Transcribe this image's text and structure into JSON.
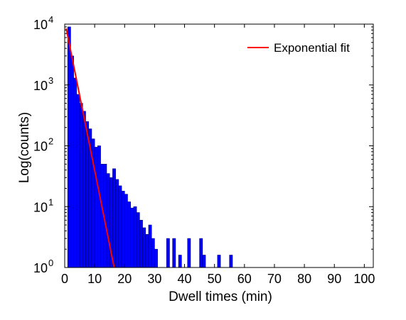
{
  "chart_data": {
    "type": "bar",
    "xlabel": "Dwell times (min)",
    "ylabel": "Log(counts)",
    "xlim": [
      0,
      103
    ],
    "xticks": [
      0,
      10,
      20,
      30,
      40,
      50,
      60,
      70,
      80,
      90,
      100
    ],
    "xtick_labels": [
      "0",
      "10",
      "20",
      "30",
      "40",
      "50",
      "60",
      "70",
      "80",
      "90",
      "100"
    ],
    "ylog": true,
    "ylim": [
      1,
      10000
    ],
    "yticks": [
      1,
      10,
      100,
      1000,
      10000
    ],
    "ytick_base": "10",
    "ytick_exponents": [
      "0",
      "1",
      "2",
      "3",
      "4"
    ],
    "grid": false,
    "legend_position": "top-right",
    "bin_width": 1,
    "series": [
      {
        "name": "",
        "kind": "histogram",
        "color": "#0000ff",
        "edge_color": "#00007f",
        "bin_starts": [
          1,
          2,
          3,
          4,
          5,
          6,
          7,
          8,
          9,
          10,
          11,
          12,
          13,
          14,
          15,
          16,
          17,
          18,
          19,
          20,
          21,
          22,
          23,
          24,
          25,
          26,
          27,
          28,
          29,
          30,
          31,
          34,
          36,
          38,
          41,
          45,
          46,
          51,
          55
        ],
        "counts": [
          9000,
          3000,
          1300,
          700,
          500,
          370,
          250,
          190,
          130,
          95,
          100,
          50,
          50,
          35,
          30,
          42,
          28,
          22,
          18,
          16,
          12,
          9.5,
          10,
          8,
          6,
          4.5,
          3.5,
          5,
          3,
          2,
          1,
          3,
          3,
          1.6,
          3,
          3,
          1.6,
          1.6,
          1.6
        ]
      },
      {
        "name": "Exponential fit",
        "kind": "line",
        "color": "#ff0000",
        "x": [
          0.5,
          16.5
        ],
        "y": [
          8500,
          1
        ]
      }
    ]
  }
}
